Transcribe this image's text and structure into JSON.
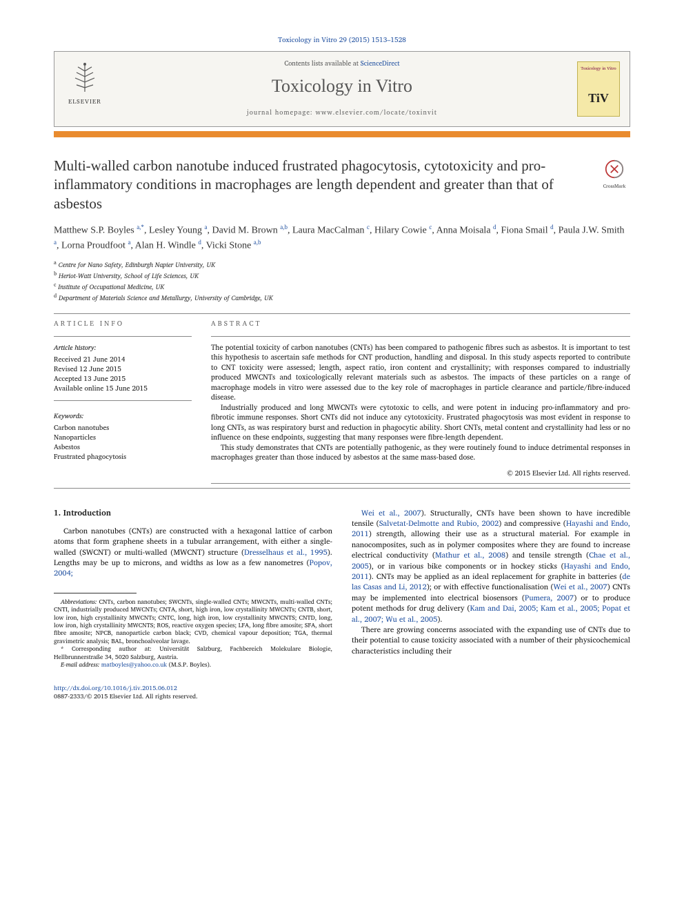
{
  "citation": "Toxicology in Vitro 29 (2015) 1513–1528",
  "header": {
    "contents_prefix": "Contents lists available at ",
    "sciencedirect": "ScienceDirect",
    "journal": "Toxicology in Vitro",
    "homepage": "journal homepage: www.elsevier.com/locate/toxinvit",
    "elsevier": "ELSEVIER",
    "cover_top": "Toxicology in Vitro",
    "cover_mark": "TiV"
  },
  "crossmark": "CrossMark",
  "title": "Multi-walled carbon nanotube induced frustrated phagocytosis, cytotoxicity and pro-inflammatory conditions in macrophages are length dependent and greater than that of asbestos",
  "authors_html": "Matthew S.P. Boyles <sup>a,*</sup>, Lesley Young <sup>a</sup>, David M. Brown <sup>a,b</sup>, Laura MacCalman <sup>c</sup>, Hilary Cowie <sup>c</sup>, Anna Moisala <sup>d</sup>, Fiona Smail <sup>d</sup>, Paula J.W. Smith <sup>a</sup>, Lorna Proudfoot <sup>a</sup>, Alan H. Windle <sup>d</sup>, Vicki Stone <sup>a,b</sup>",
  "affiliations": [
    {
      "sup": "a",
      "text": "Centre for Nano Safety, Edinburgh Napier University, UK"
    },
    {
      "sup": "b",
      "text": "Heriot-Watt University, School of Life Sciences, UK"
    },
    {
      "sup": "c",
      "text": "Institute of Occupational Medicine, UK"
    },
    {
      "sup": "d",
      "text": "Department of Materials Science and Metallurgy, University of Cambridge, UK"
    }
  ],
  "article_info": {
    "heading": "ARTICLE INFO",
    "history_label": "Article history:",
    "history": [
      "Received 21 June 2014",
      "Revised 12 June 2015",
      "Accepted 13 June 2015",
      "Available online 15 June 2015"
    ],
    "keywords_label": "Keywords:",
    "keywords": [
      "Carbon nanotubes",
      "Nanoparticles",
      "Asbestos",
      "Frustrated phagocytosis"
    ]
  },
  "abstract": {
    "heading": "ABSTRACT",
    "paragraphs": [
      "The potential toxicity of carbon nanotubes (CNTs) has been compared to pathogenic fibres such as asbestos. It is important to test this hypothesis to ascertain safe methods for CNT production, handling and disposal. In this study aspects reported to contribute to CNT toxicity were assessed; length, aspect ratio, iron content and crystallinity; with responses compared to industrially produced MWCNTs and toxicologically relevant materials such as asbestos. The impacts of these particles on a range of macrophage models in vitro were assessed due to the key role of macrophages in particle clearance and particle/fibre-induced disease.",
      "Industrially produced and long MWCNTs were cytotoxic to cells, and were potent in inducing pro-inflammatory and pro-fibrotic immune responses. Short CNTs did not induce any cytotoxicity. Frustrated phagocytosis was most evident in response to long CNTs, as was respiratory burst and reduction in phagocytic ability. Short CNTs, metal content and crystallinity had less or no influence on these endpoints, suggesting that many responses were fibre-length dependent.",
      "This study demonstrates that CNTs are potentially pathogenic, as they were routinely found to induce detrimental responses in macrophages greater than those induced by asbestos at the same mass-based dose."
    ],
    "copyright": "© 2015 Elsevier Ltd. All rights reserved."
  },
  "intro": {
    "heading": "1. Introduction",
    "left_html": "Carbon nanotubes (CNTs) are constructed with a hexagonal lattice of carbon atoms that form graphene sheets in a tubular arrangement, with either a single-walled (SWCNT) or multi-walled (MWCNT) structure (<span class='link'>Dresselhaus et al., 1995</span>). Lengths may be up to microns, and widths as low as a few nanometres (<span class='link'>Popov, 2004;</span>",
    "right_html": "<span class='link'>Wei et al., 2007</span>). Structurally, CNTs have been shown to have incredible tensile (<span class='link'>Salvetat-Delmotte and Rubio, 2002</span>) and compressive (<span class='link'>Hayashi and Endo, 2011</span>) strength, allowing their use as a structural material. For example in nanocomposites, such as in polymer composites where they are found to increase electrical conductivity (<span class='link'>Mathur et al., 2008</span>) and tensile strength (<span class='link'>Chae et al., 2005</span>), or in various bike components or in hockey sticks (<span class='link'>Hayashi and Endo, 2011</span>). CNTs may be applied as an ideal replacement for graphite in batteries (<span class='link'>de las Casas and Li, 2012</span>); or with effective functionalisation (<span class='link'>Wei et al., 2007</span>) CNTs may be implemented into electrical biosensors (<span class='link'>Pumera, 2007</span>) or to produce potent methods for drug delivery (<span class='link'>Kam and Dai, 2005; Kam et al., 2005; Popat et al., 2007; Wu et al., 2005</span>).",
    "right_p2": "There are growing concerns associated with the expanding use of CNTs due to their potential to cause toxicity associated with a number of their physicochemical characteristics including their"
  },
  "footnotes": {
    "abbrev_label": "Abbreviations:",
    "abbrev_text": " CNTs, carbon nanotubes; SWCNTs, single-walled CNTs; MWCNTs, multi-walled CNTs; CNTI, industrially produced MWCNTs; CNTA, short, high iron, low crystallinity MWCNTs; CNTB, short, low iron, high crystallinity MWCNTs; CNTC, long, high iron, low crystallinity MWCNTS; CNTD, long, low iron, high crystallinity MWCNTS; ROS, reactive oxygen species; LFA, long fibre amosite; SFA, short fibre amosite; NPCB, nanoparticle carbon black; CVD, chemical vapour deposition; TGA, thermal gravimetric analysis; BAL, bronchoalveolar lavage.",
    "corr_marker": "*",
    "corr_text": " Corresponding author at: Universität Salzburg, Fachbereich Molekulare Biologie, Hellbrunnerstraße 34, 5020 Salzburg, Austria.",
    "email_label": "E-mail address: ",
    "email": "matboyles@yahoo.co.uk",
    "email_suffix": " (M.S.P. Boyles)."
  },
  "doi": {
    "url": "http://dx.doi.org/10.1016/j.tiv.2015.06.012",
    "issn": "0887-2333/© 2015 Elsevier Ltd. All rights reserved."
  },
  "colors": {
    "link": "#2050a0",
    "accent": "#e98b2e",
    "cover_bg": "#f5e9a8"
  }
}
